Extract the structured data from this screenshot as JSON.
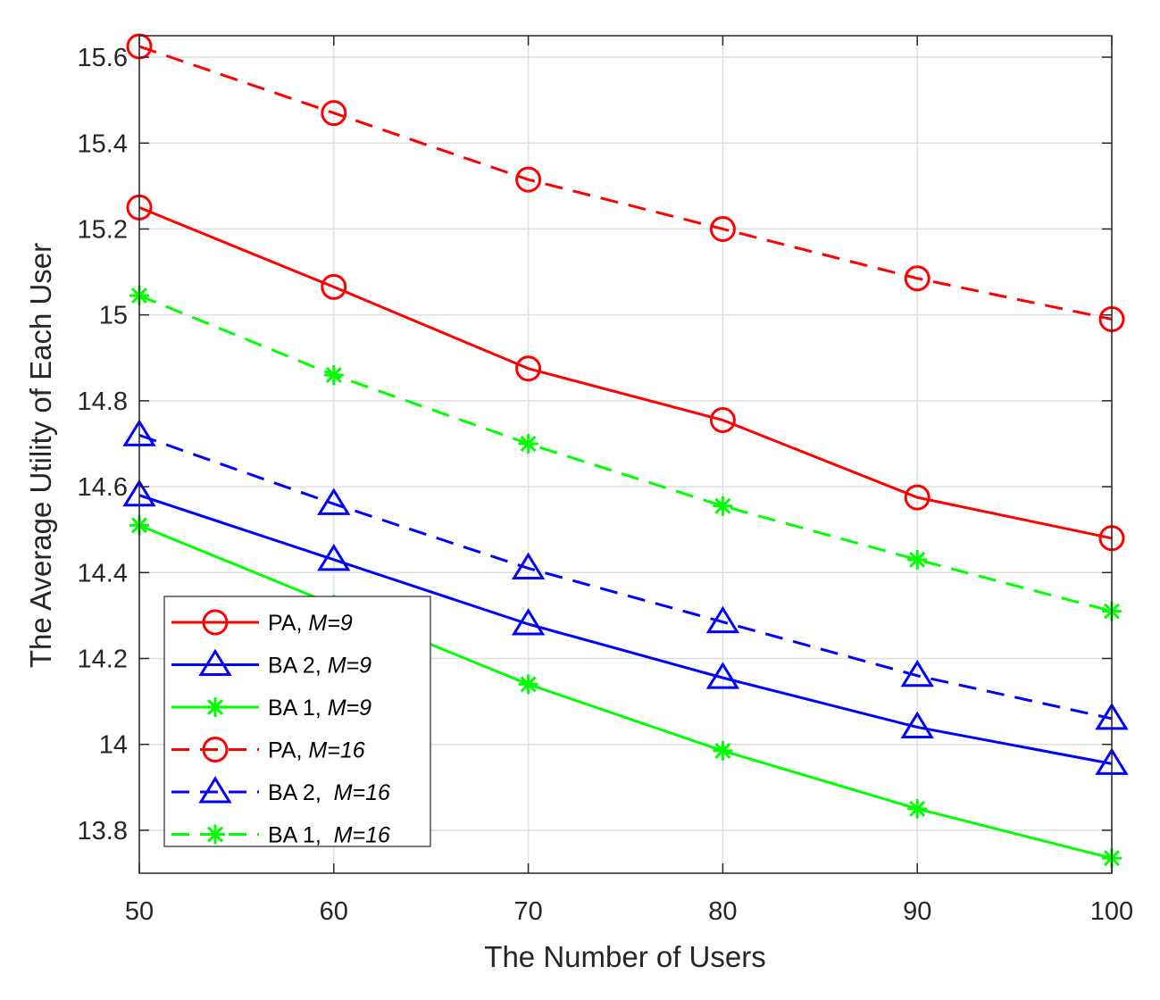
{
  "chart_data": {
    "type": "line",
    "title": "",
    "xlabel": "The Number of Users",
    "ylabel": "The Average Utility of Each User",
    "xlim": [
      50,
      100
    ],
    "ylim": [
      13.7,
      15.65
    ],
    "xticks": [
      50,
      60,
      70,
      80,
      90,
      100
    ],
    "xtick_labels": [
      "50",
      "60",
      "70",
      "80",
      "90",
      "100"
    ],
    "yticks": [
      13.8,
      14.0,
      14.2,
      14.4,
      14.6,
      14.8,
      15.0,
      15.2,
      15.4,
      15.6
    ],
    "ytick_labels": [
      "13.8",
      "14",
      "14.2",
      "14.4",
      "14.6",
      "14.8",
      "15",
      "15.2",
      "15.4",
      "15.6"
    ],
    "grid": true,
    "legend_position": "bottom-left",
    "x": [
      50,
      60,
      70,
      80,
      90,
      100
    ],
    "series": [
      {
        "name": "PA, M=9",
        "label_main": "PA, ",
        "label_italic": "M=9",
        "color": "#ff0000",
        "dash": "solid",
        "marker": "circle",
        "values": [
          15.25,
          15.065,
          14.875,
          14.755,
          14.575,
          14.48
        ]
      },
      {
        "name": "BA 2, M=9",
        "label_main": "BA 2, ",
        "label_italic": "M=9",
        "color": "#0000ff",
        "dash": "solid",
        "marker": "triangle",
        "values": [
          14.58,
          14.43,
          14.28,
          14.155,
          14.04,
          13.955
        ]
      },
      {
        "name": "BA 1, M=9",
        "label_main": "BA 1, ",
        "label_italic": "M=9",
        "color": "#00ff00",
        "dash": "solid",
        "marker": "asterisk",
        "values": [
          14.51,
          14.325,
          14.14,
          13.985,
          13.85,
          13.735
        ]
      },
      {
        "name": "PA, M=16",
        "label_main": "PA, ",
        "label_italic": "M=16",
        "color": "#ff0000",
        "dash": "dashed",
        "marker": "circle",
        "values": [
          15.625,
          15.47,
          15.315,
          15.2,
          15.085,
          14.99
        ]
      },
      {
        "name": "BA 2,  M=16",
        "label_main": "BA 2,  ",
        "label_italic": "M=16",
        "color": "#0000ff",
        "dash": "dashed",
        "marker": "triangle",
        "values": [
          14.72,
          14.56,
          14.41,
          14.285,
          14.16,
          14.06
        ]
      },
      {
        "name": "BA 1,  M=16",
        "label_main": "BA 1,  ",
        "label_italic": "M=16",
        "color": "#00ff00",
        "dash": "dashed",
        "marker": "asterisk",
        "values": [
          15.045,
          14.86,
          14.7,
          14.555,
          14.43,
          14.31
        ]
      }
    ]
  }
}
